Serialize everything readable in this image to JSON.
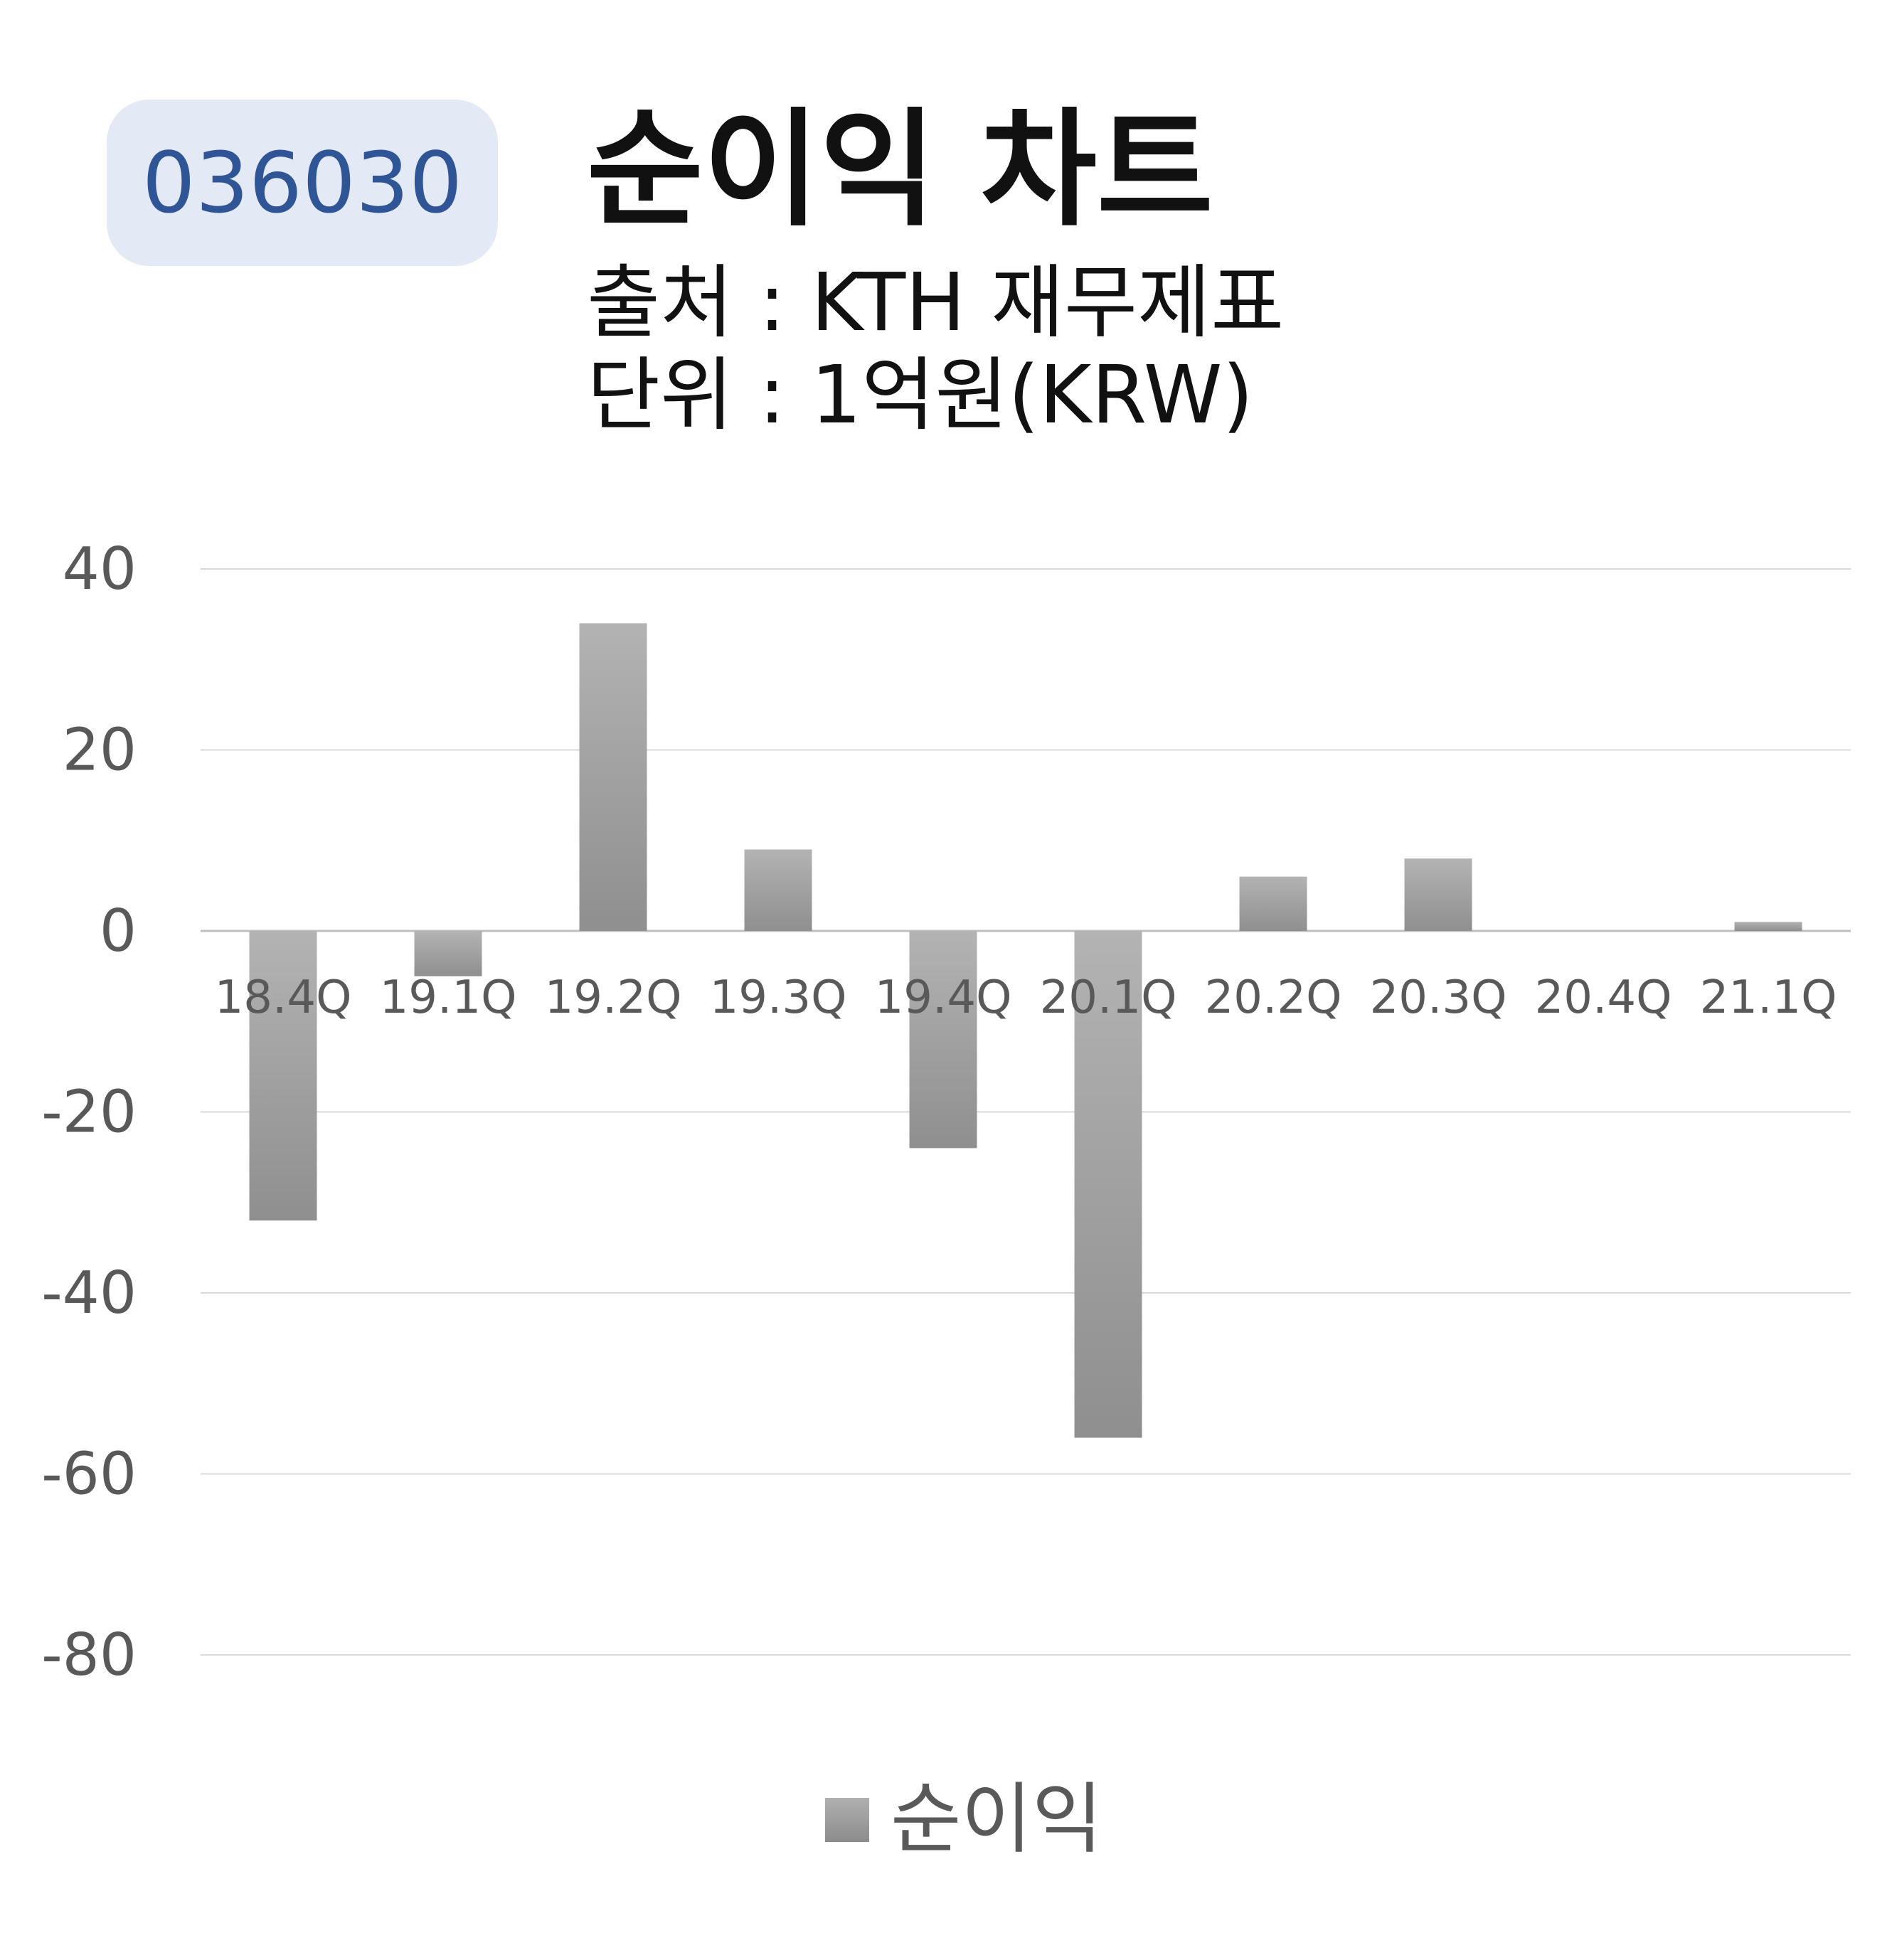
{
  "ticker": "036030",
  "title": "순이익 차트",
  "source_line": "출처 : KTH 재무제표",
  "unit_line": "단위 : 1억원(KRW)",
  "colors": {
    "bar": "#9e9e9e",
    "badge_bg": "#e3e9f5",
    "ticker_text": "#2f5597",
    "grid": "#d9d9d9",
    "tick_text": "#595959"
  },
  "chart_data": {
    "type": "bar",
    "categories": [
      "18.4Q",
      "19.1Q",
      "19.2Q",
      "19.3Q",
      "19.4Q",
      "20.1Q",
      "20.2Q",
      "20.3Q",
      "20.4Q",
      "21.1Q"
    ],
    "series": [
      {
        "name": "순이익",
        "values": [
          -32,
          -5,
          34,
          9,
          -24,
          -56,
          6,
          8,
          0,
          1
        ]
      }
    ],
    "ylim": [
      -80,
      40
    ],
    "yticks": [
      40,
      20,
      0,
      -20,
      -40,
      -60,
      -80
    ],
    "grid": true,
    "legend_position": "bottom"
  }
}
